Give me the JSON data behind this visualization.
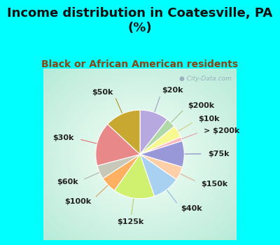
{
  "title": "Income distribution in Coatesville, PA\n(%)",
  "subtitle": "Black or African American residents",
  "bg_cyan": "#00FFFF",
  "bg_chart_outer": "#b0e8d8",
  "bg_chart_inner": "#f0fdf8",
  "watermark": "● City-Data.com",
  "slices": [
    {
      "label": "$20k",
      "value": 10.5,
      "color": "#b8a8e0"
    },
    {
      "label": "$200k",
      "value": 3.5,
      "color": "#b0d8a8"
    },
    {
      "label": "$10k",
      "value": 4.5,
      "color": "#f8f890"
    },
    {
      "label": "> $200k",
      "value": 1.5,
      "color": "#ffb8c0"
    },
    {
      "label": "$75k",
      "value": 9.5,
      "color": "#9898d8"
    },
    {
      "label": "$150k",
      "value": 5.0,
      "color": "#ffd0a8"
    },
    {
      "label": "$40k",
      "value": 10.0,
      "color": "#a8d0f0"
    },
    {
      "label": "$125k",
      "value": 15.0,
      "color": "#d0f070"
    },
    {
      "label": "$100k",
      "value": 6.0,
      "color": "#ffb060"
    },
    {
      "label": "$60k",
      "value": 5.0,
      "color": "#c8c8b8"
    },
    {
      "label": "$30k",
      "value": 16.0,
      "color": "#e88888"
    },
    {
      "label": "$50k",
      "value": 13.0,
      "color": "#c8a830"
    }
  ],
  "label_fontsize": 8,
  "title_fontsize": 13,
  "subtitle_fontsize": 10,
  "subtitle_color": "#8B4513",
  "title_color": "#111111"
}
